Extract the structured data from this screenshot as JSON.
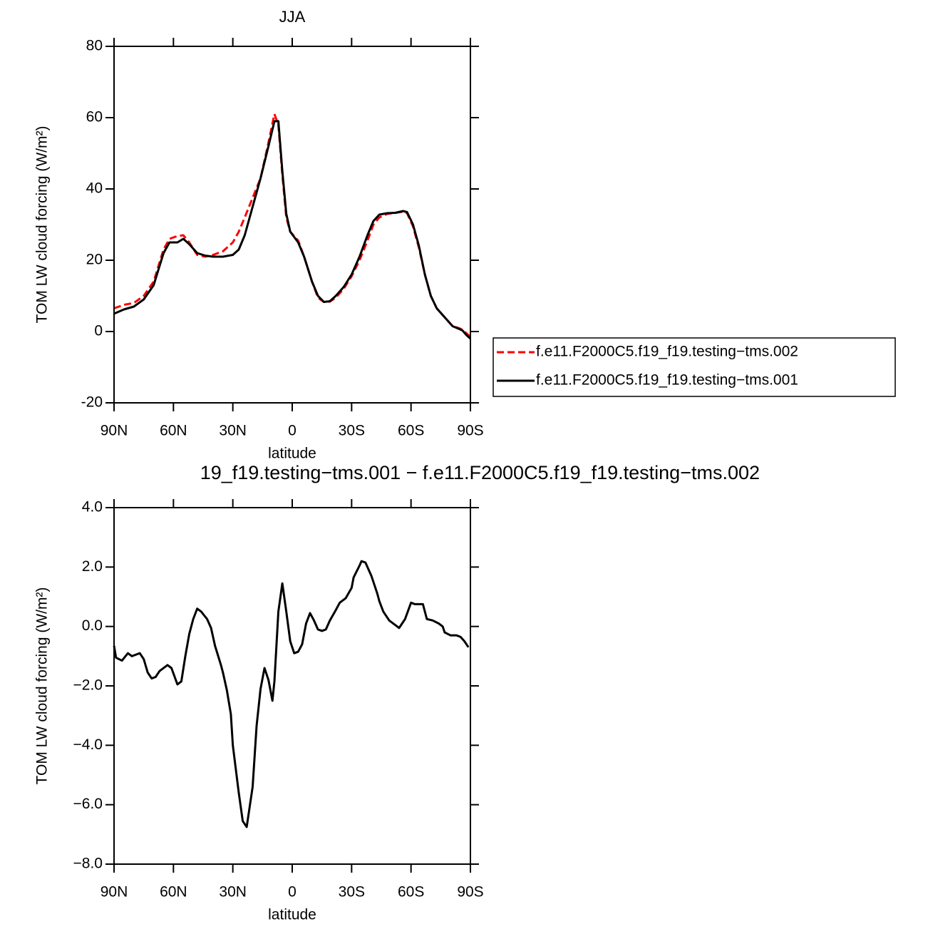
{
  "chart_data": [
    {
      "type": "line",
      "title": "JJA",
      "xlabel": "latitude",
      "ylabel": "TOM LW cloud forcing (W/m²)",
      "x": [
        90,
        85,
        80,
        75,
        70,
        65,
        62,
        58,
        55,
        52,
        48,
        44,
        40,
        35,
        30,
        27,
        24,
        20,
        16,
        12,
        9,
        7,
        5,
        3,
        1,
        -3,
        -6,
        -10,
        -13,
        -16,
        -19,
        -22,
        -26,
        -30,
        -34,
        -38,
        -41,
        -44,
        -48,
        -52,
        -56,
        -58,
        -61,
        -64,
        -67,
        -70,
        -73,
        -77,
        -81,
        -84,
        -86,
        -88,
        -90
      ],
      "series": [
        {
          "name": "f.e11.F2000C5.f19_f19.testing−tms.002",
          "color": "#ff0000",
          "dashed": true,
          "values": [
            6.5,
            7.5,
            8,
            10,
            14,
            23,
            26,
            26.8,
            27,
            25,
            21.5,
            21,
            21.5,
            22.5,
            25,
            28,
            32,
            37.5,
            43,
            53,
            61,
            58,
            44,
            32,
            28,
            25.5,
            21,
            14,
            9.5,
            8.3,
            8.4,
            9.5,
            12,
            15.5,
            20,
            25.5,
            30,
            32,
            33,
            33.3,
            33.6,
            33.2,
            29.5,
            23.5,
            16,
            10,
            6.5,
            4,
            1.5,
            1,
            0.5,
            -0.5,
            -1.5
          ]
        },
        {
          "name": "f.e11.F2000C5.f19_f19.testing−tms.001",
          "color": "#000000",
          "dashed": false,
          "values": [
            5,
            6.2,
            7,
            9,
            13,
            22,
            25,
            25,
            26,
            24.5,
            22,
            21.3,
            21,
            21,
            21.5,
            23,
            27,
            35,
            43,
            52,
            59,
            59,
            45,
            33,
            28,
            25,
            21,
            14,
            10,
            8.3,
            8.5,
            10,
            12.5,
            16,
            21,
            27,
            31,
            32.8,
            33.2,
            33.3,
            33.8,
            33.5,
            30,
            24,
            16,
            10,
            6.5,
            4,
            1.5,
            0.8,
            0.3,
            -1,
            -2
          ]
        }
      ],
      "xlim": [
        90,
        -90
      ],
      "xticks": [
        {
          "value": 90,
          "label": "90N"
        },
        {
          "value": 60,
          "label": "60N"
        },
        {
          "value": 30,
          "label": "30N"
        },
        0,
        {
          "value": -30,
          "label": "30S"
        },
        {
          "value": -60,
          "label": "60S"
        },
        {
          "value": -90,
          "label": "90S"
        }
      ],
      "ylim": [
        -20,
        80
      ],
      "yticks": [
        -20,
        0,
        20,
        40,
        60,
        80
      ]
    },
    {
      "type": "line",
      "title": "19_f19.testing−tms.001 − f.e11.F2000C5.f19_f19.testing−tms.002",
      "xlabel": "latitude",
      "ylabel": "TOM LW cloud forcing (W/m²)",
      "x": [
        90,
        89,
        86,
        83,
        81,
        79,
        77,
        75,
        73,
        71,
        69,
        67,
        63,
        61,
        58,
        56,
        54,
        52,
        50,
        48,
        46,
        43,
        41,
        39,
        36,
        35,
        33,
        31,
        30,
        27,
        25,
        23,
        22,
        20,
        18,
        16,
        14,
        12,
        10,
        9,
        7,
        5,
        3,
        1,
        -1,
        -3,
        -5,
        -7,
        -9,
        -11,
        -13,
        -15,
        -17,
        -19,
        -22,
        -24,
        -27,
        -30,
        -31,
        -34,
        -35,
        -37,
        -40,
        -43,
        -44,
        -46,
        -49,
        -52,
        -54,
        -57,
        -60,
        -62,
        -66,
        -68,
        -71,
        -74,
        -76,
        -77,
        -80,
        -83,
        -85,
        -87,
        -89
      ],
      "values": [
        -0.65,
        -1.05,
        -1.15,
        -0.9,
        -1,
        -0.95,
        -0.9,
        -1.1,
        -1.55,
        -1.75,
        -1.7,
        -1.5,
        -1.3,
        -1.4,
        -1.95,
        -1.85,
        -1,
        -0.25,
        0.25,
        0.6,
        0.5,
        0.25,
        -0.05,
        -0.65,
        -1.3,
        -1.55,
        -2.15,
        -2.95,
        -4,
        -5.6,
        -6.55,
        -6.75,
        -6.3,
        -5.4,
        -3.35,
        -2.1,
        -1.4,
        -1.8,
        -2.5,
        -1.85,
        0.5,
        1.45,
        0.5,
        -0.5,
        -0.9,
        -0.85,
        -0.6,
        0.1,
        0.45,
        0.2,
        -0.1,
        -0.15,
        -0.1,
        0.2,
        0.55,
        0.8,
        0.95,
        1.3,
        1.65,
        2.05,
        2.2,
        2.15,
        1.7,
        1.1,
        0.85,
        0.5,
        0.2,
        0.05,
        -0.05,
        0.25,
        0.8,
        0.75,
        0.75,
        0.25,
        0.2,
        0.1,
        0,
        -0.2,
        -0.3,
        -0.3,
        -0.35,
        -0.5,
        -0.7
      ],
      "color": "#000000",
      "xlim": [
        90,
        -90
      ],
      "xticks": [
        {
          "value": 90,
          "label": "90N"
        },
        {
          "value": 60,
          "label": "60N"
        },
        {
          "value": 30,
          "label": "30N"
        },
        0,
        {
          "value": -30,
          "label": "30S"
        },
        {
          "value": -60,
          "label": "60S"
        },
        {
          "value": -90,
          "label": "90S"
        }
      ],
      "ylim": [
        -8,
        4
      ],
      "yticks": [
        {
          "value": -8,
          "label": "−8.0"
        },
        {
          "value": -6,
          "label": "−6.0"
        },
        {
          "value": -4,
          "label": "−4.0"
        },
        {
          "value": -2,
          "label": "−2.0"
        },
        {
          "value": 0,
          "label": "0.0"
        },
        {
          "value": 2,
          "label": "2.0"
        },
        {
          "value": 4,
          "label": "4.0"
        }
      ]
    }
  ]
}
